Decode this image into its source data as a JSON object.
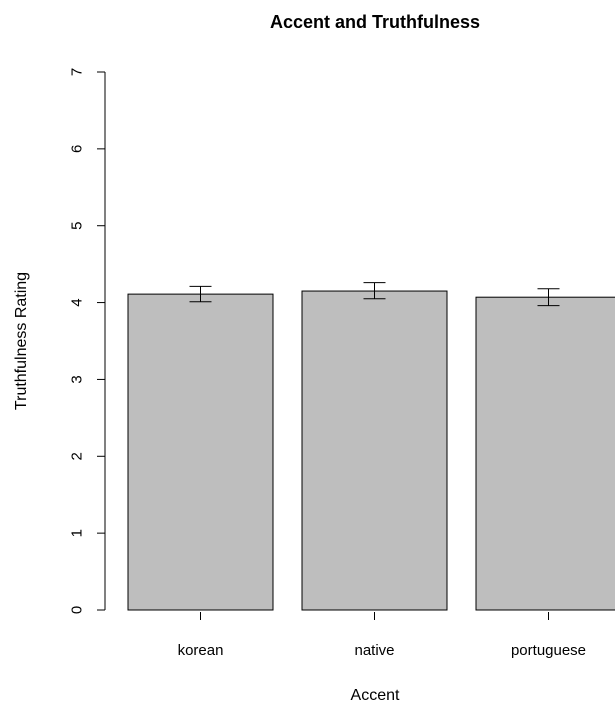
{
  "chart_data": {
    "type": "bar",
    "title": "Accent and Truthfulness",
    "xlabel": "Accent",
    "ylabel": "Truthfulness Rating",
    "categories": [
      "korean",
      "native",
      "portuguese"
    ],
    "values": [
      4.11,
      4.15,
      4.07
    ],
    "error_bars": [
      {
        "low": 4.01,
        "high": 4.21
      },
      {
        "low": 4.05,
        "high": 4.26
      },
      {
        "low": 3.96,
        "high": 4.18
      }
    ],
    "ylim": [
      0,
      7
    ],
    "yticks": [
      "0",
      "1",
      "2",
      "3",
      "4",
      "5",
      "6",
      "7"
    ],
    "grid": false,
    "legend": "none",
    "colors": {
      "bar_fill": "#bebebe",
      "bar_stroke": "#000000",
      "error_bar": "#000000"
    }
  }
}
